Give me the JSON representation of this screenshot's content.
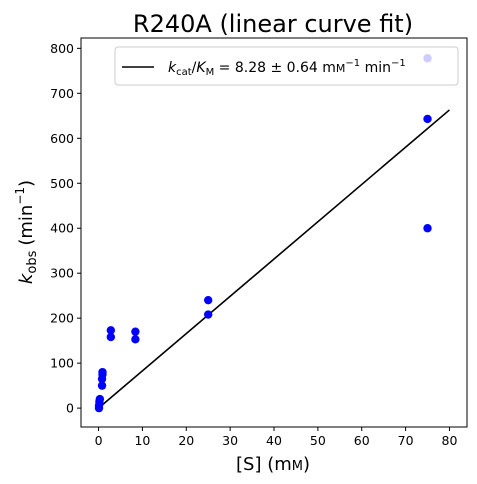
{
  "chart_data": {
    "type": "scatter",
    "title": "R240A (linear curve fit)",
    "xlabel_main": "[S] (m",
    "xlabel_unit": "M",
    "xlabel_close": ")",
    "ylabel_k": "k",
    "ylabel_sub": "obs",
    "ylabel_unit": "(min",
    "ylabel_exp": "−1",
    "ylabel_close": ")",
    "xlim": [
      -4,
      84
    ],
    "ylim": [
      -42,
      823
    ],
    "xticks": [
      0,
      10,
      20,
      30,
      40,
      50,
      60,
      70,
      80
    ],
    "yticks": [
      0,
      100,
      200,
      300,
      400,
      500,
      600,
      700,
      800
    ],
    "grid": false,
    "legend_position": "top-right",
    "colors": {
      "points": "#0000ff",
      "fit_line": "#000000"
    },
    "series": [
      {
        "kind": "points",
        "x": [
          0.1,
          0.1,
          0.2,
          0.2,
          0.3,
          0.8,
          0.8,
          0.9,
          0.9,
          2.8,
          2.8,
          8.4,
          8.4,
          25,
          25,
          75,
          75,
          75
        ],
        "y": [
          0,
          5,
          10,
          15,
          20,
          50,
          65,
          75,
          80,
          158,
          173,
          153,
          170,
          208,
          240,
          400,
          643,
          778
        ]
      },
      {
        "kind": "line",
        "x": [
          0,
          80
        ],
        "y": [
          0,
          663
        ]
      }
    ],
    "legend": {
      "k": "k",
      "cat": "cat",
      "slash": "/",
      "K": "K",
      "M": "M",
      "value": " = 8.28 ± 0.64 m",
      "unit1": "M",
      "exp1": "−1",
      "unit2": " min",
      "exp2": "−1"
    }
  }
}
